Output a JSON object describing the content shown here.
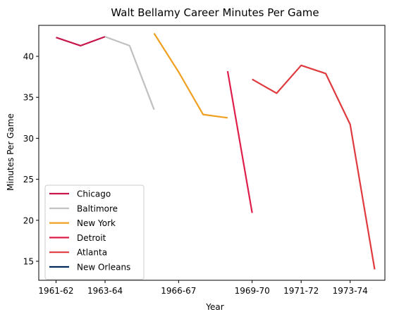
{
  "chart_data": {
    "type": "line",
    "title": "Walt Bellamy Career Minutes Per Game",
    "xlabel": "Year",
    "ylabel": "Minutes Per Game",
    "x_ticks": [
      "1961-62",
      "1963-64",
      "1966-67",
      "1969-70",
      "1971-72",
      "1973-74"
    ],
    "y_ticks": [
      15,
      20,
      25,
      30,
      35,
      40
    ],
    "legend_position": "lower-left",
    "grid": false,
    "series": [
      {
        "name": "Chicago",
        "color": "#C8164A",
        "points": [
          [
            "1961-62",
            42.3
          ],
          [
            "1962-63",
            41.3
          ],
          [
            "1963-64",
            42.4
          ]
        ]
      },
      {
        "name": "Baltimore",
        "color": "#C0C0C0",
        "points": [
          [
            "1963-64",
            42.4
          ],
          [
            "1964-65",
            41.3
          ],
          [
            "1965-66",
            33.5
          ]
        ]
      },
      {
        "name": "New York",
        "color": "#F0A020",
        "points": [
          [
            "1965-66",
            42.8
          ],
          [
            "1966-67",
            38.1
          ],
          [
            "1967-68",
            32.9
          ],
          [
            "1968-69",
            32.5
          ]
        ]
      },
      {
        "name": "Detroit",
        "color": "#E01E4A",
        "points": [
          [
            "1968-69",
            38.2
          ],
          [
            "1969-70",
            20.9
          ]
        ]
      },
      {
        "name": "Atlanta",
        "color": "#E03A3E",
        "points": [
          [
            "1969-70",
            37.2
          ],
          [
            "1970-71",
            35.5
          ],
          [
            "1971-72",
            38.9
          ],
          [
            "1972-73",
            37.9
          ],
          [
            "1973-74",
            31.7
          ],
          [
            "1974-75",
            14.0
          ]
        ]
      },
      {
        "name": "New Orleans",
        "color": "#002B5C",
        "points": []
      }
    ]
  }
}
